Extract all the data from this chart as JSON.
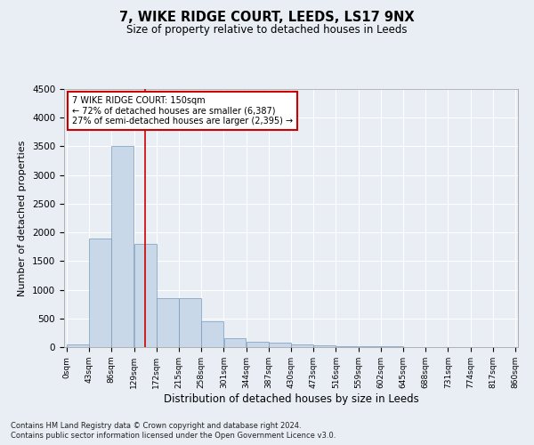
{
  "title": "7, WIKE RIDGE COURT, LEEDS, LS17 9NX",
  "subtitle": "Size of property relative to detached houses in Leeds",
  "xlabel": "Distribution of detached houses by size in Leeds",
  "ylabel": "Number of detached properties",
  "bin_edges": [
    0,
    43,
    86,
    129,
    172,
    215,
    258,
    301,
    344,
    387,
    430,
    473,
    516,
    559,
    602,
    645,
    688,
    731,
    774,
    817,
    860
  ],
  "bar_heights": [
    50,
    1900,
    3500,
    1800,
    850,
    850,
    450,
    150,
    100,
    75,
    50,
    30,
    15,
    10,
    8,
    5,
    4,
    3,
    2,
    2
  ],
  "bar_color": "#c8d8e8",
  "bar_edge_color": "#7799bb",
  "property_size": 150,
  "property_line_color": "#cc0000",
  "annotation_text": "7 WIKE RIDGE COURT: 150sqm\n← 72% of detached houses are smaller (6,387)\n27% of semi-detached houses are larger (2,395) →",
  "annotation_box_color": "#ffffff",
  "annotation_box_edge_color": "#cc0000",
  "ylim": [
    0,
    4500
  ],
  "yticks": [
    0,
    500,
    1000,
    1500,
    2000,
    2500,
    3000,
    3500,
    4000,
    4500
  ],
  "tick_labels": [
    "0sqm",
    "43sqm",
    "86sqm",
    "129sqm",
    "172sqm",
    "215sqm",
    "258sqm",
    "301sqm",
    "344sqm",
    "387sqm",
    "430sqm",
    "473sqm",
    "516sqm",
    "559sqm",
    "602sqm",
    "645sqm",
    "688sqm",
    "731sqm",
    "774sqm",
    "817sqm",
    "860sqm"
  ],
  "background_color": "#e8eef4",
  "grid_color": "#ffffff",
  "footer_line1": "Contains HM Land Registry data © Crown copyright and database right 2024.",
  "footer_line2": "Contains public sector information licensed under the Open Government Licence v3.0."
}
